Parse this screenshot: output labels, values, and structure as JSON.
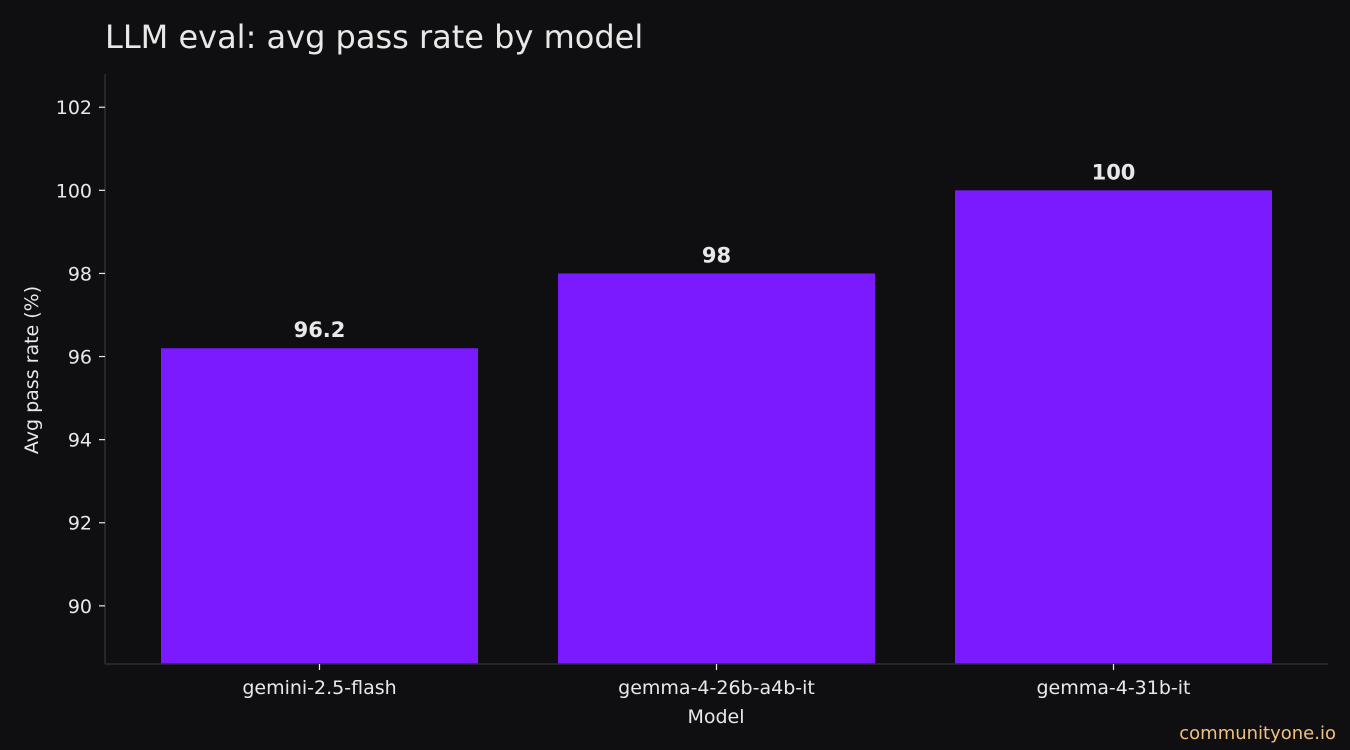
{
  "chart_data": {
    "type": "bar",
    "title": "LLM eval: avg pass rate by model",
    "xlabel": "Model",
    "ylabel": "Avg pass rate (%)",
    "categories": [
      "gemini-2.5-flash",
      "gemma-4-26b-a4b-it",
      "gemma-4-31b-it"
    ],
    "values": [
      96.2,
      98,
      100
    ],
    "data_labels": [
      "96.2",
      "98",
      "100"
    ],
    "yticks": [
      "90",
      "92",
      "94",
      "96",
      "98",
      "100",
      "102"
    ],
    "ylim": [
      88.6,
      102.8
    ],
    "grid": false,
    "legend": "none",
    "colors": {
      "background": "#0f0f11",
      "bar": "#7b19ff",
      "text": "#e8e8e8",
      "axis": "#2e2e33"
    }
  },
  "footer": {
    "watermark": "communityone.io"
  }
}
